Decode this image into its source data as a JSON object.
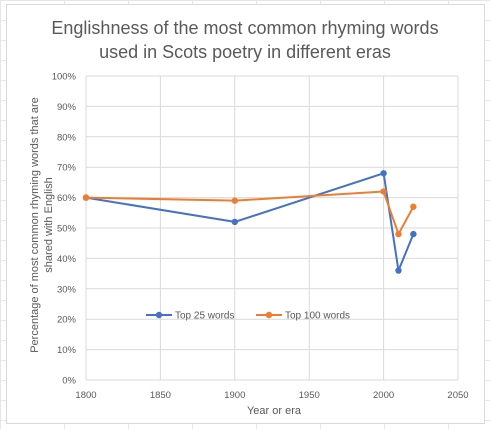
{
  "chart_data": {
    "type": "line",
    "title_line1": "Englishness of the most common rhyming words",
    "title_line2": "used in Scots poetry in different eras",
    "xlabel": "Year or era",
    "ylabel_line1": "Percentage of most common rhyming words that are",
    "ylabel_line2": "shared with English",
    "xlim": [
      1800,
      2050
    ],
    "ylim": [
      0,
      100
    ],
    "x_ticks": [
      1800,
      1850,
      1900,
      1950,
      2000,
      2050
    ],
    "y_ticks": [
      "0%",
      "10%",
      "20%",
      "30%",
      "40%",
      "50%",
      "60%",
      "70%",
      "80%",
      "90%",
      "100%"
    ],
    "grid": true,
    "legend": "inside-bottom-center",
    "series": [
      {
        "name": "Top 25 words",
        "color": "#4472C4",
        "points": [
          [
            1800,
            60
          ],
          [
            1900,
            52
          ],
          [
            2000,
            68
          ],
          [
            2010,
            36
          ],
          [
            2020,
            48
          ]
        ]
      },
      {
        "name": "Top 100 words",
        "color": "#ED7D31",
        "points": [
          [
            1800,
            60
          ],
          [
            1900,
            59
          ],
          [
            2000,
            62
          ],
          [
            2010,
            48
          ],
          [
            2020,
            57
          ]
        ]
      }
    ]
  }
}
